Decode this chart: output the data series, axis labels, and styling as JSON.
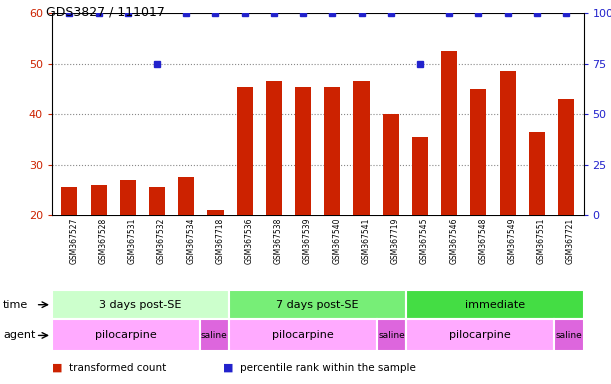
{
  "title": "GDS3827 / 111017",
  "samples": [
    "GSM367527",
    "GSM367528",
    "GSM367531",
    "GSM367532",
    "GSM367534",
    "GSM367718",
    "GSM367536",
    "GSM367538",
    "GSM367539",
    "GSM367540",
    "GSM367541",
    "GSM367719",
    "GSM367545",
    "GSM367546",
    "GSM367548",
    "GSM367549",
    "GSM367551",
    "GSM367721"
  ],
  "bar_values": [
    25.5,
    26.0,
    27.0,
    25.5,
    27.5,
    21.0,
    45.5,
    46.5,
    45.5,
    45.5,
    46.5,
    40.0,
    35.5,
    52.5,
    45.0,
    48.5,
    36.5,
    43.0
  ],
  "dot_values": [
    100,
    100,
    100,
    75,
    100,
    100,
    100,
    100,
    100,
    100,
    100,
    100,
    75,
    100,
    100,
    100,
    100,
    100
  ],
  "bar_color": "#cc2200",
  "dot_color": "#2222cc",
  "ylim_left": [
    20,
    60
  ],
  "ylim_right": [
    0,
    100
  ],
  "yticks_left": [
    20,
    30,
    40,
    50,
    60
  ],
  "yticks_right": [
    0,
    25,
    50,
    75,
    100
  ],
  "ytick_labels_right": [
    "0",
    "25",
    "50",
    "75",
    "100%"
  ],
  "time_groups": [
    {
      "label": "3 days post-SE",
      "start": 0,
      "end": 6,
      "color": "#ccffcc"
    },
    {
      "label": "7 days post-SE",
      "start": 6,
      "end": 12,
      "color": "#77ee77"
    },
    {
      "label": "immediate",
      "start": 12,
      "end": 18,
      "color": "#44dd44"
    }
  ],
  "agent_groups": [
    {
      "label": "pilocarpine",
      "start": 0,
      "end": 5,
      "color": "#ffaaff"
    },
    {
      "label": "saline",
      "start": 5,
      "end": 6,
      "color": "#dd66dd"
    },
    {
      "label": "pilocarpine",
      "start": 6,
      "end": 11,
      "color": "#ffaaff"
    },
    {
      "label": "saline",
      "start": 11,
      "end": 12,
      "color": "#dd66dd"
    },
    {
      "label": "pilocarpine",
      "start": 12,
      "end": 17,
      "color": "#ffaaff"
    },
    {
      "label": "saline",
      "start": 17,
      "end": 18,
      "color": "#dd66dd"
    }
  ],
  "legend_items": [
    {
      "color": "#cc2200",
      "label": "transformed count"
    },
    {
      "color": "#2222cc",
      "label": "percentile rank within the sample"
    }
  ],
  "label_row_color": "#dddddd",
  "background_color": "#ffffff",
  "grid_color": "#888888",
  "bar_width": 0.55
}
